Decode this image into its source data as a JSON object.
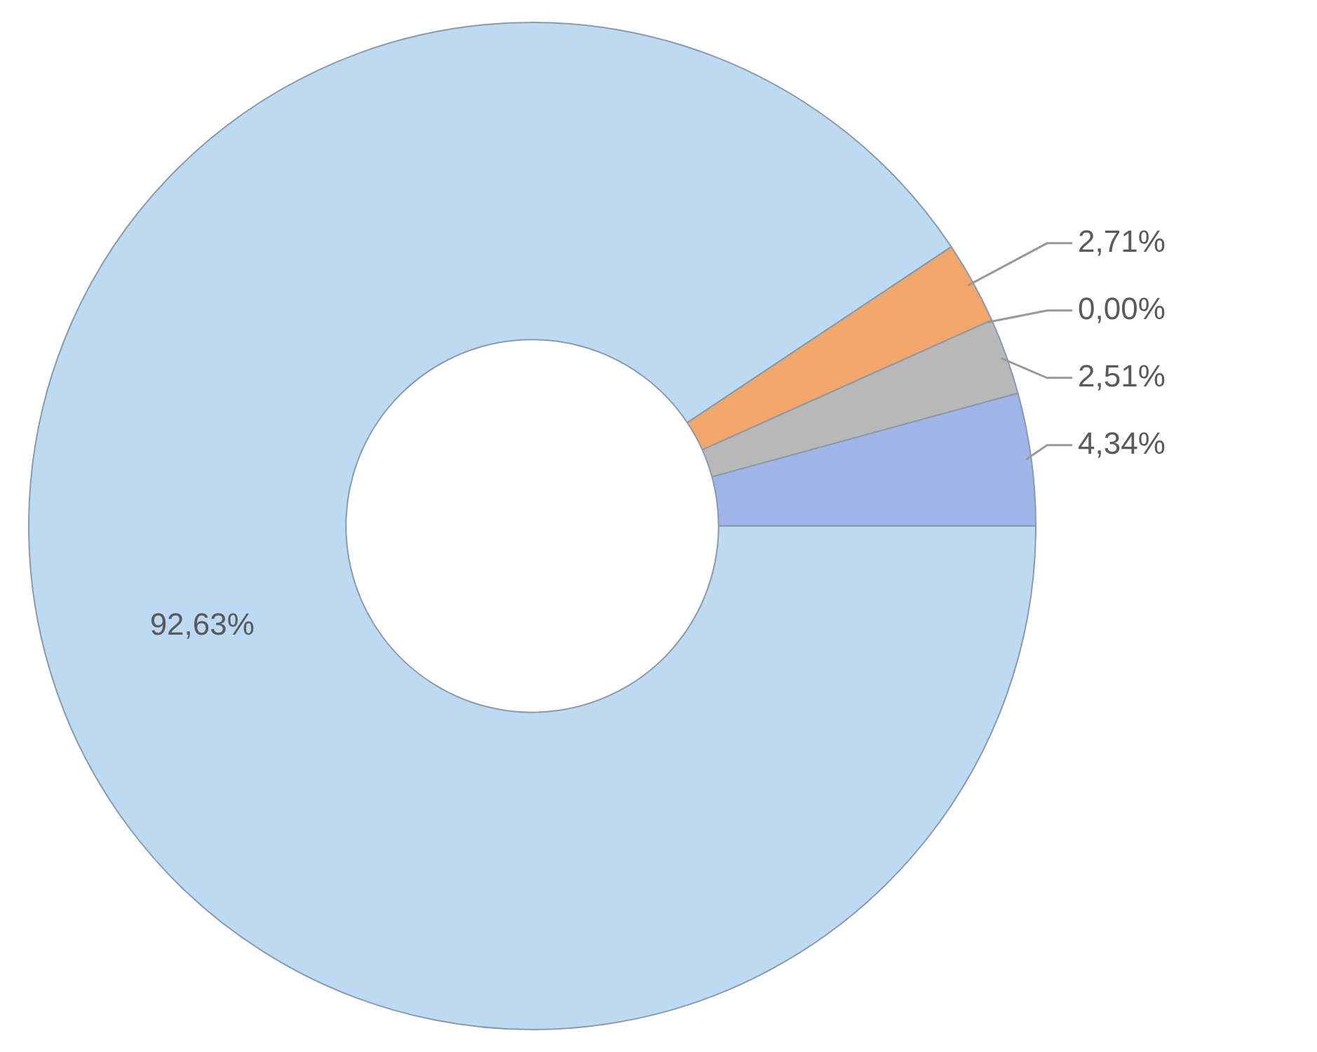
{
  "chart_data": {
    "type": "donut",
    "categories": [
      null,
      null,
      null,
      null,
      null
    ],
    "values": [
      92.63,
      2.71,
      0.0,
      2.51,
      4.34
    ],
    "value_labels": [
      "92,63%",
      "2,71%",
      "0,00%",
      "2,51%",
      "4,34%"
    ],
    "colors": [
      "#bcdaf2",
      "#f2a66a",
      "#ffd98a",
      "#b8b8b8",
      "#9fb4e8"
    ],
    "legend": false
  }
}
